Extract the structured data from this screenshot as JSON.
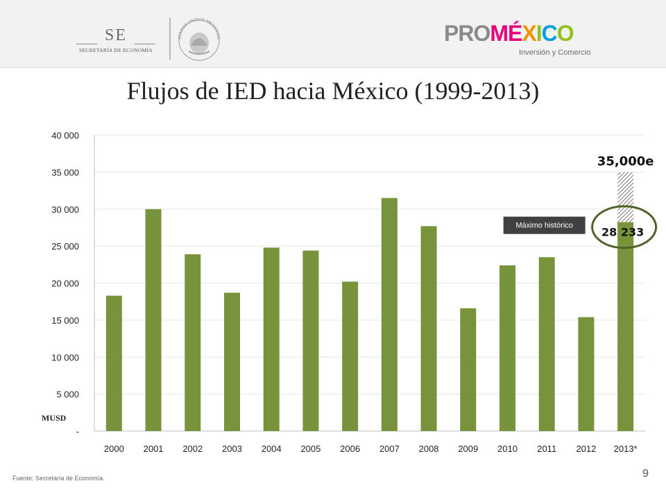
{
  "header": {
    "se_logo": {
      "abbr": "SE",
      "name": "SECRETARÍA DE ECONOMÍA"
    },
    "seal_text": "ESTADOS UNIDOS MEXICANOS",
    "promexico": {
      "pro": "PRO",
      "mexico_letters": [
        "M",
        "É",
        "X",
        "I",
        "C",
        "O"
      ],
      "subtitle": "Inversión y Comercio"
    }
  },
  "title": "Flujos de IED hacia México (1999-2013)",
  "chart_data": {
    "type": "bar",
    "categories": [
      "2000",
      "2001",
      "2002",
      "2003",
      "2004",
      "2005",
      "2006",
      "2007",
      "2008",
      "2009",
      "2010",
      "2011",
      "2012",
      "2013*"
    ],
    "values": [
      18300,
      30000,
      23900,
      18700,
      24800,
      24400,
      20200,
      31500,
      27700,
      16600,
      22400,
      23500,
      15400,
      28233
    ],
    "ylim": [
      0,
      40000
    ],
    "yticks": [
      0,
      5000,
      10000,
      15000,
      20000,
      25000,
      30000,
      35000,
      40000
    ],
    "ytick_labels": [
      "-",
      "5 000",
      "10 000",
      "15 000",
      "20 000",
      "25 000",
      "30 000",
      "35 000",
      "40 000"
    ],
    "ylabel": "MUSD",
    "grid": true,
    "bar_color": "#77933c",
    "estimate": {
      "category": "2013*",
      "value": 35000,
      "label": "35,000e"
    },
    "data_labels": [
      {
        "category": "2013*",
        "label": "28 233"
      }
    ],
    "annotation": "Máximo histórico",
    "circle_color": "#4f6228"
  },
  "footer": {
    "source": "Fuente: Secretaría de Economía.",
    "page": "9"
  }
}
